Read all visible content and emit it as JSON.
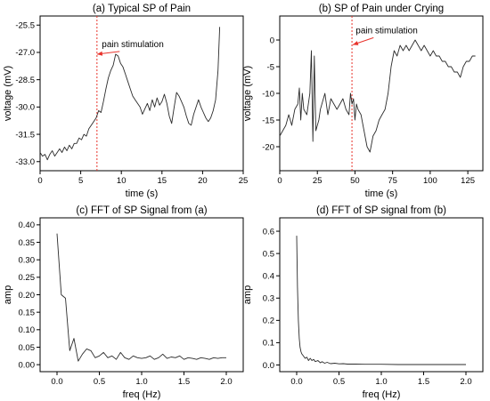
{
  "colors": {
    "signal": "#2b2b2b",
    "stimulus": "#e8322b",
    "axis": "#000000"
  },
  "chart_data": [
    {
      "type": "line",
      "title": "(a) Typical SP of Pain",
      "xlabel": "time (s)",
      "ylabel": "voltage (mV)",
      "xlim": [
        0,
        25
      ],
      "ylim": [
        -33.5,
        -25.0
      ],
      "xticks": [
        0,
        5,
        10,
        15,
        20,
        25
      ],
      "xtick_labels": [
        "0",
        "5",
        "10",
        "15",
        "20",
        "25"
      ],
      "yticks": [
        -33.0,
        -31.5,
        -30.0,
        -28.5,
        -27.0,
        -25.5
      ],
      "ytick_labels": [
        "-33.0",
        "-31.5",
        "-30.0",
        "-28.5",
        "-27.0",
        "-25.5"
      ],
      "grid": false,
      "stimulus_x": 7.0,
      "annotation": {
        "text": "pain stimulation",
        "text_x": 7.6,
        "text_y": -26.9,
        "arrow_x": 7.0,
        "arrow_y": -27.1
      },
      "series": [
        {
          "x": [
            0,
            0.3,
            0.6,
            0.9,
            1.2,
            1.5,
            1.8,
            2.1,
            2.4,
            2.7,
            3.0,
            3.3,
            3.6,
            3.9,
            4.2,
            4.5,
            4.8,
            5.1,
            5.4,
            5.7,
            6.0,
            6.3,
            6.6,
            6.9,
            7.2,
            7.5,
            7.8,
            8.1,
            8.4,
            8.7,
            9.0,
            9.3,
            9.6,
            9.9,
            10.2,
            10.5,
            10.8,
            11.1,
            11.4,
            11.7,
            12.0,
            12.3,
            12.6,
            12.9,
            13.2,
            13.5,
            13.8,
            14.1,
            14.4,
            14.7,
            15.0,
            15.3,
            15.6,
            15.9,
            16.2,
            16.5,
            16.8,
            17.1,
            17.4,
            17.7,
            18.0,
            18.3,
            18.6,
            18.9,
            19.2,
            19.5,
            19.8,
            20.1,
            20.4,
            20.7,
            21.0,
            21.3,
            21.6,
            21.9,
            22.1
          ],
          "values": [
            -32.5,
            -32.7,
            -32.6,
            -32.9,
            -32.6,
            -32.4,
            -32.7,
            -32.5,
            -32.3,
            -32.5,
            -32.2,
            -32.4,
            -32.1,
            -32.3,
            -32.0,
            -32.0,
            -31.7,
            -31.8,
            -31.5,
            -31.6,
            -31.2,
            -31.0,
            -30.8,
            -30.6,
            -30.2,
            -30.3,
            -29.7,
            -29.0,
            -28.4,
            -28.0,
            -27.7,
            -27.1,
            -27.2,
            -27.6,
            -27.8,
            -28.2,
            -28.6,
            -29.0,
            -29.4,
            -29.6,
            -29.8,
            -30.0,
            -30.4,
            -30.1,
            -29.8,
            -30.2,
            -29.6,
            -30.0,
            -29.5,
            -29.9,
            -29.7,
            -29.3,
            -29.8,
            -30.5,
            -30.9,
            -30.0,
            -29.2,
            -29.4,
            -29.7,
            -30.0,
            -30.5,
            -30.9,
            -31.0,
            -30.4,
            -30.0,
            -29.6,
            -30.0,
            -30.3,
            -30.6,
            -30.8,
            -30.6,
            -30.2,
            -29.6,
            -28.0,
            -25.6
          ]
        }
      ]
    },
    {
      "type": "line",
      "title": "(b) SP of Pain under Crying",
      "xlabel": "time (s)",
      "ylabel": "voltage (mV)",
      "xlim": [
        0,
        135
      ],
      "ylim": [
        -24.5,
        4.5
      ],
      "xticks": [
        0,
        25,
        50,
        75,
        100,
        125
      ],
      "xtick_labels": [
        "0",
        "25",
        "50",
        "75",
        "100",
        "125"
      ],
      "yticks": [
        -20,
        -15,
        -10,
        -5,
        0
      ],
      "ytick_labels": [
        "-20",
        "-15",
        "-10",
        "-5",
        "0"
      ],
      "grid": false,
      "stimulus_x": 48,
      "annotation": {
        "text": "pain stimulation",
        "text_x": 50.5,
        "text_y": 0.6,
        "arrow_x": 48.5,
        "arrow_y": -0.9
      },
      "series": [
        {
          "x": [
            0,
            2,
            4,
            6,
            8,
            10,
            12,
            13,
            14,
            15,
            16,
            18,
            20,
            21,
            22,
            23,
            24,
            25,
            26,
            27,
            28,
            30,
            32,
            34,
            36,
            38,
            40,
            42,
            44,
            46,
            47,
            48,
            49,
            50,
            51,
            52,
            54,
            56,
            58,
            60,
            62,
            64,
            66,
            68,
            70,
            72,
            74,
            76,
            78,
            80,
            82,
            84,
            86,
            88,
            90,
            92,
            94,
            96,
            98,
            100,
            102,
            104,
            106,
            108,
            110,
            112,
            114,
            116,
            118,
            120,
            122,
            124,
            126,
            128,
            130
          ],
          "values": [
            -18,
            -17,
            -16,
            -14,
            -16,
            -13,
            -12,
            -9,
            -15,
            -10,
            -13,
            -14,
            -10,
            -2,
            -19,
            -3,
            -17,
            -16,
            -15,
            -13,
            -12,
            -10,
            -14,
            -11,
            -12,
            -13,
            -12,
            -11,
            -13,
            -14,
            -10,
            -12,
            -11,
            -15,
            -12,
            -13,
            -14,
            -17,
            -20,
            -21,
            -18,
            -17,
            -15,
            -14,
            -13,
            -10,
            -5,
            -2,
            -3,
            -1,
            -2,
            -1,
            -2,
            -1,
            0,
            -1,
            -2,
            -1,
            -2,
            -3,
            -2,
            -3,
            -3,
            -4,
            -4,
            -5,
            -5,
            -6,
            -6,
            -7,
            -5,
            -4,
            -4,
            -3,
            -3
          ]
        }
      ]
    },
    {
      "type": "line",
      "title": "(c) FFT of SP Signal from (a)",
      "xlabel": "freq (Hz)",
      "ylabel": "amp",
      "xlim": [
        -0.2,
        2.2
      ],
      "ylim": [
        -0.02,
        0.42
      ],
      "xticks": [
        0.0,
        0.5,
        1.0,
        1.5,
        2.0
      ],
      "xtick_labels": [
        "0.0",
        "0.5",
        "1.0",
        "1.5",
        "2.0"
      ],
      "yticks": [
        0.0,
        0.05,
        0.1,
        0.15,
        0.2,
        0.25,
        0.3,
        0.35,
        0.4
      ],
      "ytick_labels": [
        "0.00",
        "0.05",
        "0.10",
        "0.15",
        "0.20",
        "0.25",
        "0.30",
        "0.35",
        "0.40"
      ],
      "grid": false,
      "series": [
        {
          "x": [
            0.0,
            0.05,
            0.1,
            0.15,
            0.2,
            0.25,
            0.3,
            0.35,
            0.4,
            0.45,
            0.5,
            0.55,
            0.6,
            0.65,
            0.7,
            0.75,
            0.8,
            0.85,
            0.9,
            0.95,
            1.0,
            1.05,
            1.1,
            1.15,
            1.2,
            1.25,
            1.3,
            1.35,
            1.4,
            1.45,
            1.5,
            1.55,
            1.6,
            1.65,
            1.7,
            1.75,
            1.8,
            1.85,
            1.9,
            1.95,
            2.0
          ],
          "values": [
            0.375,
            0.2,
            0.19,
            0.04,
            0.075,
            0.01,
            0.03,
            0.045,
            0.04,
            0.02,
            0.025,
            0.035,
            0.02,
            0.025,
            0.015,
            0.035,
            0.02,
            0.015,
            0.025,
            0.02,
            0.018,
            0.02,
            0.025,
            0.015,
            0.02,
            0.03,
            0.018,
            0.022,
            0.02,
            0.025,
            0.015,
            0.02,
            0.018,
            0.015,
            0.02,
            0.018,
            0.015,
            0.02,
            0.018,
            0.02,
            0.02
          ]
        }
      ]
    },
    {
      "type": "line",
      "title": "(d) FFT of SP signal from (b)",
      "xlabel": "freq (Hz)",
      "ylabel": "amp",
      "xlim": [
        -0.2,
        2.2
      ],
      "ylim": [
        -0.03,
        0.66
      ],
      "xticks": [
        0.0,
        0.5,
        1.0,
        1.5,
        2.0
      ],
      "xtick_labels": [
        "0.0",
        "0.5",
        "1.0",
        "1.5",
        "2.0"
      ],
      "yticks": [
        0.0,
        0.1,
        0.2,
        0.3,
        0.4,
        0.5,
        0.6
      ],
      "ytick_labels": [
        "0.0",
        "0.1",
        "0.2",
        "0.3",
        "0.4",
        "0.5",
        "0.6"
      ],
      "grid": false,
      "series": [
        {
          "x": [
            0.0,
            0.01,
            0.02,
            0.03,
            0.04,
            0.05,
            0.06,
            0.08,
            0.1,
            0.12,
            0.14,
            0.16,
            0.18,
            0.2,
            0.22,
            0.25,
            0.28,
            0.3,
            0.33,
            0.36,
            0.4,
            0.45,
            0.5,
            0.55,
            0.6,
            0.7,
            0.8,
            0.9,
            1.0,
            1.2,
            1.4,
            1.6,
            1.8,
            2.0
          ],
          "values": [
            0.58,
            0.35,
            0.2,
            0.12,
            0.08,
            0.06,
            0.05,
            0.04,
            0.03,
            0.035,
            0.02,
            0.03,
            0.02,
            0.025,
            0.015,
            0.02,
            0.01,
            0.015,
            0.008,
            0.012,
            0.006,
            0.008,
            0.005,
            0.006,
            0.004,
            0.004,
            0.003,
            0.003,
            0.003,
            0.002,
            0.002,
            0.002,
            0.002,
            0.002
          ]
        }
      ]
    }
  ]
}
